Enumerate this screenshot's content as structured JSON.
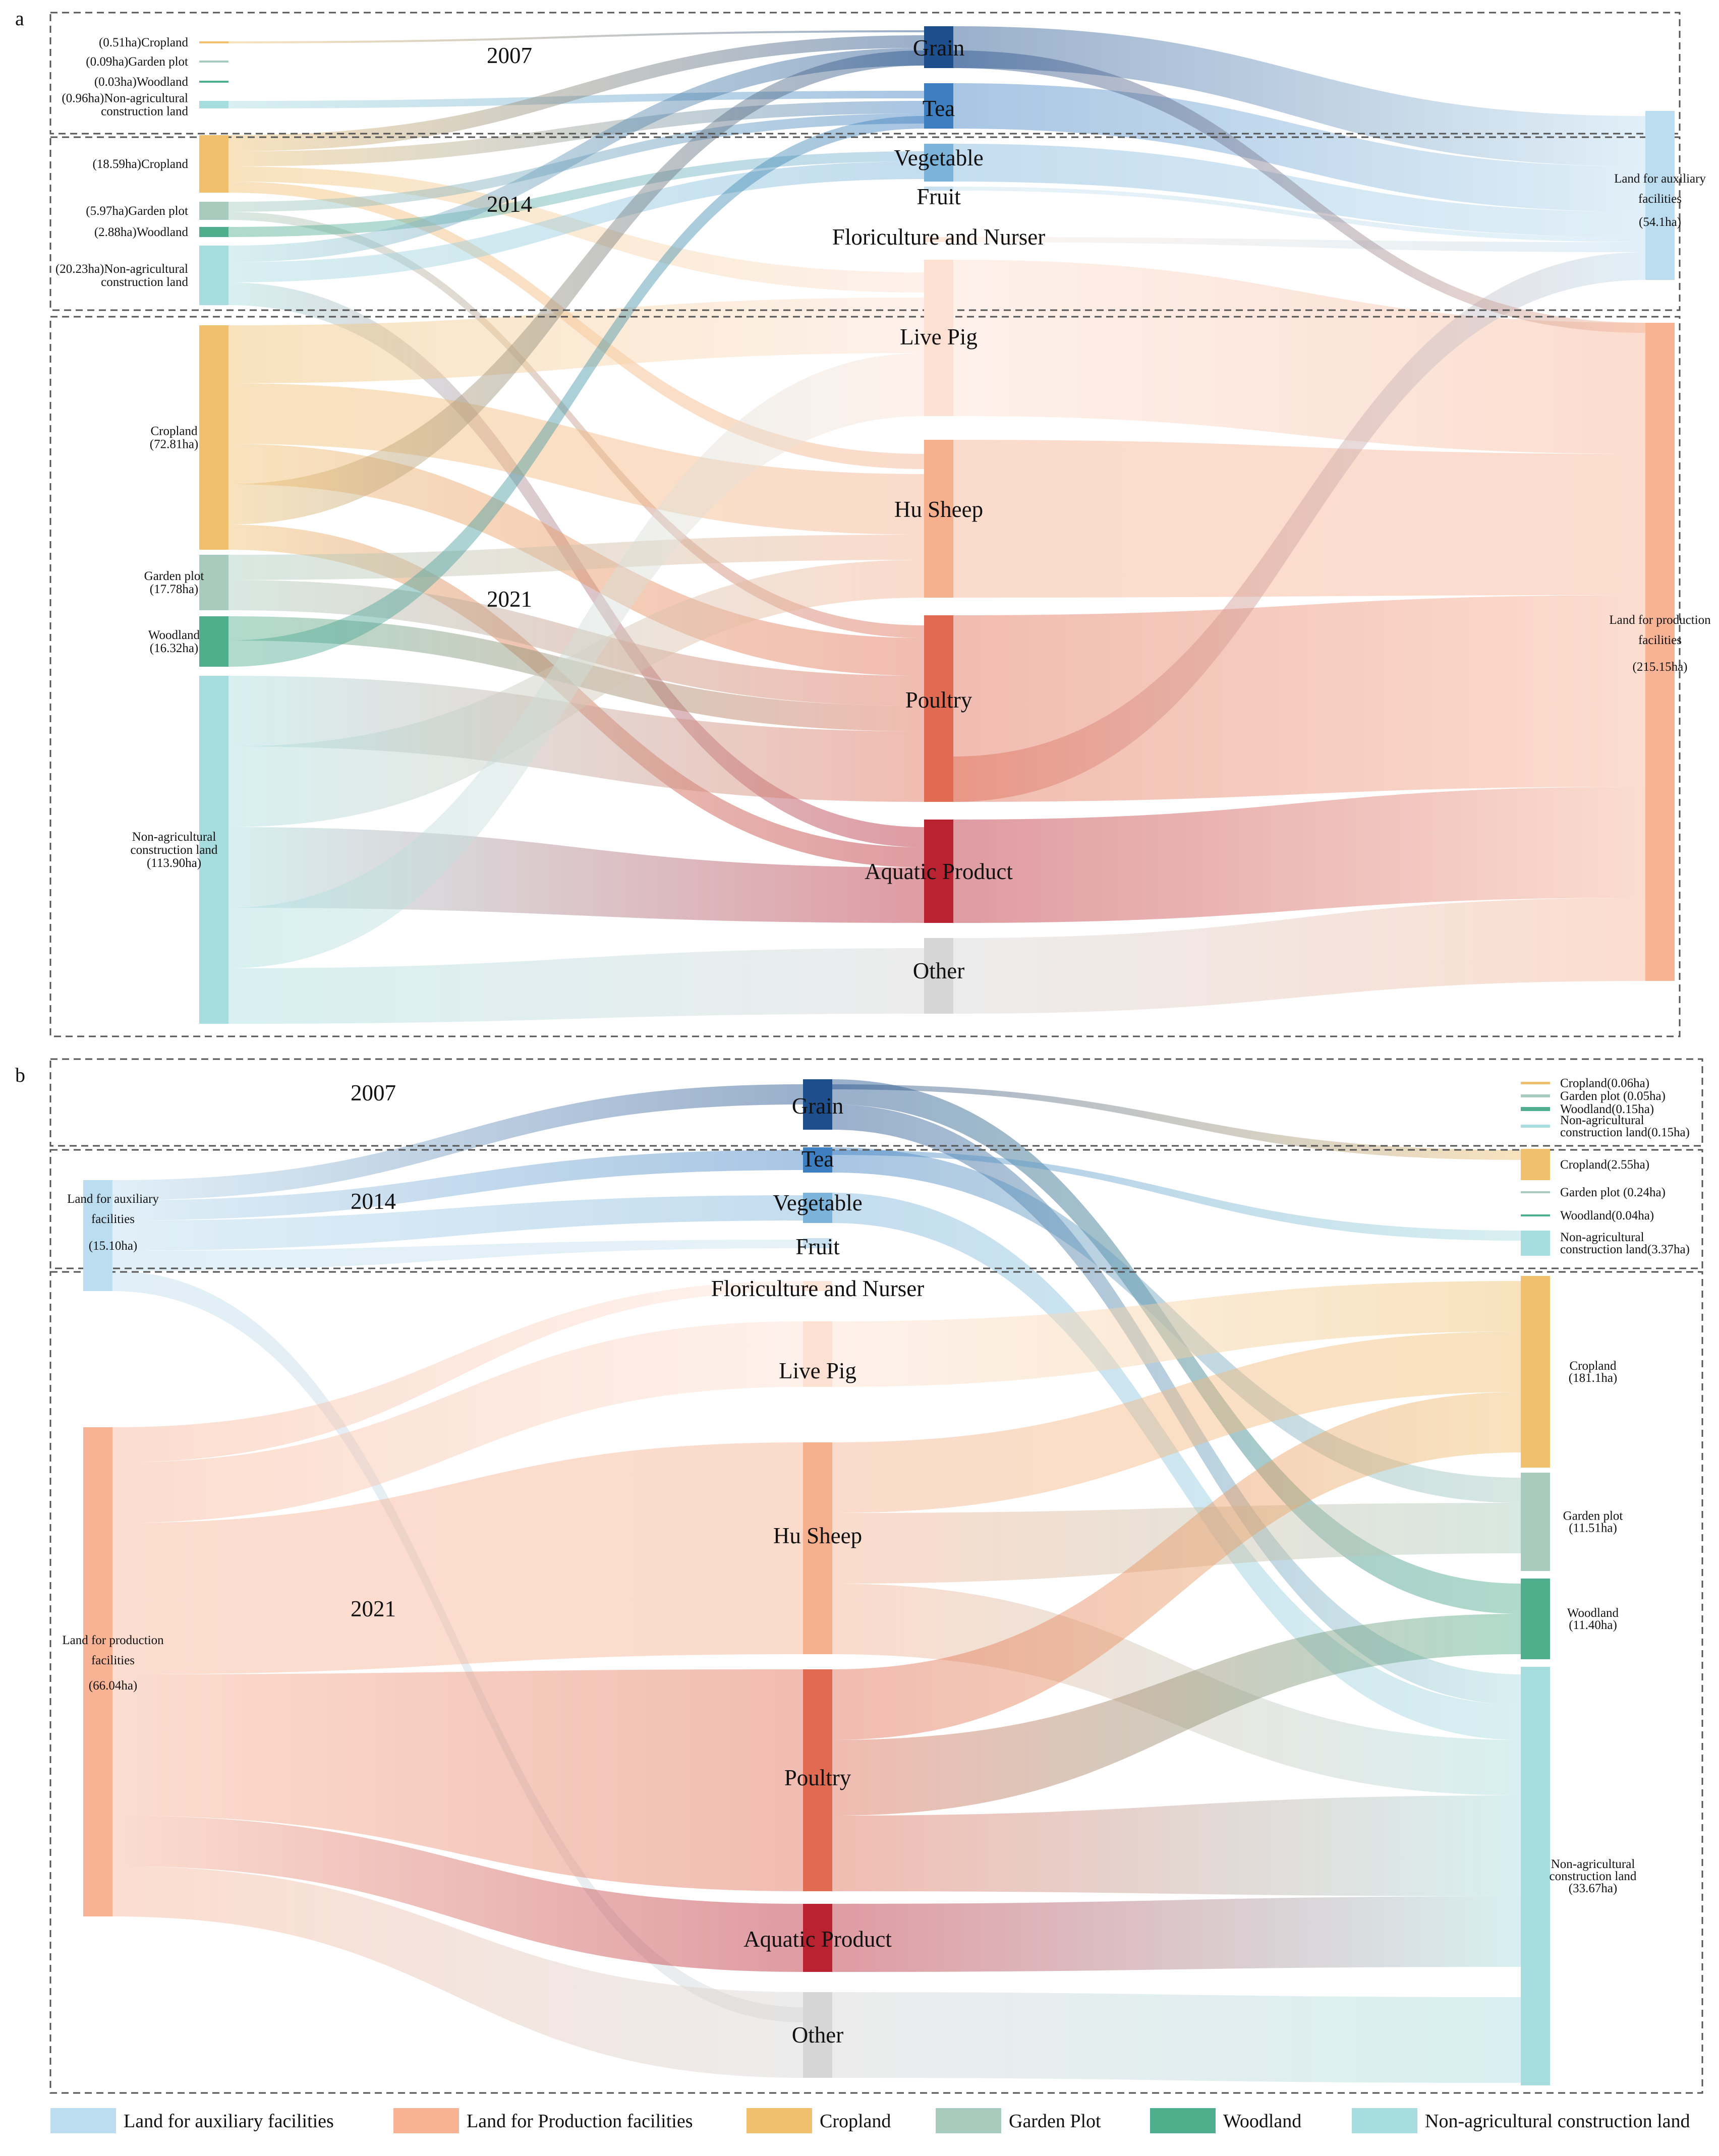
{
  "colors": {
    "auxiliary": "#bcdcef",
    "production": "#f7b394",
    "cropland": "#f0c06f",
    "garden": "#a7ccbe",
    "woodland": "#4fae8c",
    "nonag": "#a8dde0",
    "grain": "#1f4e8c",
    "tea": "#3e7fc1",
    "vegetable": "#7cb3db",
    "fruit": "#c8e0f0",
    "flori": "#fde6da",
    "livepig": "#fce0d2",
    "husheep": "#f6b08e",
    "poultry": "#e06a52",
    "aquatic": "#b82231",
    "other": "#d6d6d6"
  },
  "chart_data": {
    "type": "sankey",
    "panels": [
      {
        "id": "a",
        "panel_label": "a",
        "years": [
          "2007",
          "2014",
          "2021"
        ],
        "left_nodes": [
          {
            "id": "a07c",
            "group": "2007",
            "category": "cropland",
            "label_lines": [
              "(0.51ha)Cropland"
            ],
            "value": 0.51
          },
          {
            "id": "a07g",
            "group": "2007",
            "category": "garden",
            "label_lines": [
              "(0.09ha)Garden plot"
            ],
            "value": 0.09
          },
          {
            "id": "a07w",
            "group": "2007",
            "category": "woodland",
            "label_lines": [
              "(0.03ha)Woodland"
            ],
            "value": 0.03
          },
          {
            "id": "a07n",
            "group": "2007",
            "category": "nonag",
            "label_lines": [
              "(0.96ha)Non-agricultural",
              "construction land"
            ],
            "value": 0.96
          },
          {
            "id": "a14c",
            "group": "2014",
            "category": "cropland",
            "label_lines": [
              "(18.59ha)Cropland"
            ],
            "value": 18.59
          },
          {
            "id": "a14g",
            "group": "2014",
            "category": "garden",
            "label_lines": [
              "(5.97ha)Garden plot"
            ],
            "value": 5.97
          },
          {
            "id": "a14w",
            "group": "2014",
            "category": "woodland",
            "label_lines": [
              "(2.88ha)Woodland"
            ],
            "value": 2.88
          },
          {
            "id": "a14n",
            "group": "2014",
            "category": "nonag",
            "label_lines": [
              "(20.23ha)Non-agricultural",
              "construction land"
            ],
            "value": 20.23
          },
          {
            "id": "a21c",
            "group": "2021",
            "category": "cropland",
            "label_lines": [
              "Cropland",
              "(72.81ha)"
            ],
            "value": 72.81
          },
          {
            "id": "a21g",
            "group": "2021",
            "category": "garden",
            "label_lines": [
              "Garden plot",
              "(17.78ha)"
            ],
            "value": 17.78
          },
          {
            "id": "a21w",
            "group": "2021",
            "category": "woodland",
            "label_lines": [
              "Woodland",
              "(16.32ha)"
            ],
            "value": 16.32
          },
          {
            "id": "a21n",
            "group": "2021",
            "category": "nonag",
            "label_lines": [
              "Non-agricultural",
              "construction land",
              "(113.90ha)"
            ],
            "value": 113.9
          }
        ],
        "middle_nodes": [
          "Grain",
          "Tea",
          "Vegetable",
          "Fruit",
          "Floriculture and Nurser",
          "Live Pig",
          "Hu Sheep",
          "Poultry",
          "Aquatic Product",
          "Other"
        ],
        "right_nodes": [
          {
            "id": "aAux",
            "category": "auxiliary",
            "label_lines": [
              "Land for auxiliary",
              "facilities",
              "(54.1ha)"
            ],
            "value": 54.1
          },
          {
            "id": "aProd",
            "category": "production",
            "label_lines": [
              "Land for production",
              "facilities",
              "(215.15ha)"
            ],
            "value": 215.15
          }
        ]
      },
      {
        "id": "b",
        "panel_label": "b",
        "years": [
          "2007",
          "2014",
          "2021"
        ],
        "left_nodes": [
          {
            "id": "bAux",
            "category": "auxiliary",
            "label_lines": [
              "Land for auxiliary",
              "facilities",
              "(15.10ha)"
            ],
            "value": 15.1
          },
          {
            "id": "bProd",
            "category": "production",
            "label_lines": [
              "Land for production",
              "facilities",
              "(66.04ha)"
            ],
            "value": 66.04
          }
        ],
        "middle_nodes": [
          "Grain",
          "Tea",
          "Vegetable",
          "Fruit",
          "Floriculture and Nurser",
          "Live Pig",
          "Hu Sheep",
          "Poultry",
          "Aquatic Product",
          "Other"
        ],
        "right_nodes": [
          {
            "id": "b07c",
            "group": "2007",
            "category": "cropland",
            "label_lines": [
              "Cropland(0.06ha)"
            ],
            "value": 0.06
          },
          {
            "id": "b07g",
            "group": "2007",
            "category": "garden",
            "label_lines": [
              "Garden plot (0.05ha)"
            ],
            "value": 0.05
          },
          {
            "id": "b07w",
            "group": "2007",
            "category": "woodland",
            "label_lines": [
              "Woodland(0.15ha)"
            ],
            "value": 0.15
          },
          {
            "id": "b07n",
            "group": "2007",
            "category": "nonag",
            "label_lines": [
              "Non-agricultural",
              "construction land(0.15ha)"
            ],
            "value": 0.15
          },
          {
            "id": "b14c",
            "group": "2014",
            "category": "cropland",
            "label_lines": [
              "Cropland(2.55ha)"
            ],
            "value": 2.55
          },
          {
            "id": "b14g",
            "group": "2014",
            "category": "garden",
            "label_lines": [
              "Garden plot (0.24ha)"
            ],
            "value": 0.24
          },
          {
            "id": "b14w",
            "group": "2014",
            "category": "woodland",
            "label_lines": [
              "Woodland(0.04ha)"
            ],
            "value": 0.04
          },
          {
            "id": "b14n",
            "group": "2014",
            "category": "nonag",
            "label_lines": [
              "Non-agricultural",
              "construction land(3.37ha)"
            ],
            "value": 3.37
          },
          {
            "id": "b21c",
            "group": "2021",
            "category": "cropland",
            "label_lines": [
              "Cropland",
              "(181.1ha)"
            ],
            "value": 181.1
          },
          {
            "id": "b21g",
            "group": "2021",
            "category": "garden",
            "label_lines": [
              "Garden plot",
              "(11.51ha)"
            ],
            "value": 11.51
          },
          {
            "id": "b21w",
            "group": "2021",
            "category": "woodland",
            "label_lines": [
              "Woodland",
              "(11.40ha)"
            ],
            "value": 11.4
          },
          {
            "id": "b21n",
            "group": "2021",
            "category": "nonag",
            "label_lines": [
              "Non-agricultural",
              "construction land",
              "(33.67ha)"
            ],
            "value": 33.67
          }
        ]
      }
    ],
    "legend": [
      {
        "label": "Land for auxiliary facilities",
        "category": "auxiliary"
      },
      {
        "label": "Land for Production facilities",
        "category": "production"
      },
      {
        "label": "Cropland",
        "category": "cropland"
      },
      {
        "label": "Garden Plot",
        "category": "garden"
      },
      {
        "label": "Woodland",
        "category": "woodland"
      },
      {
        "label": "Non-agricultural construction land",
        "category": "nonag"
      }
    ]
  }
}
